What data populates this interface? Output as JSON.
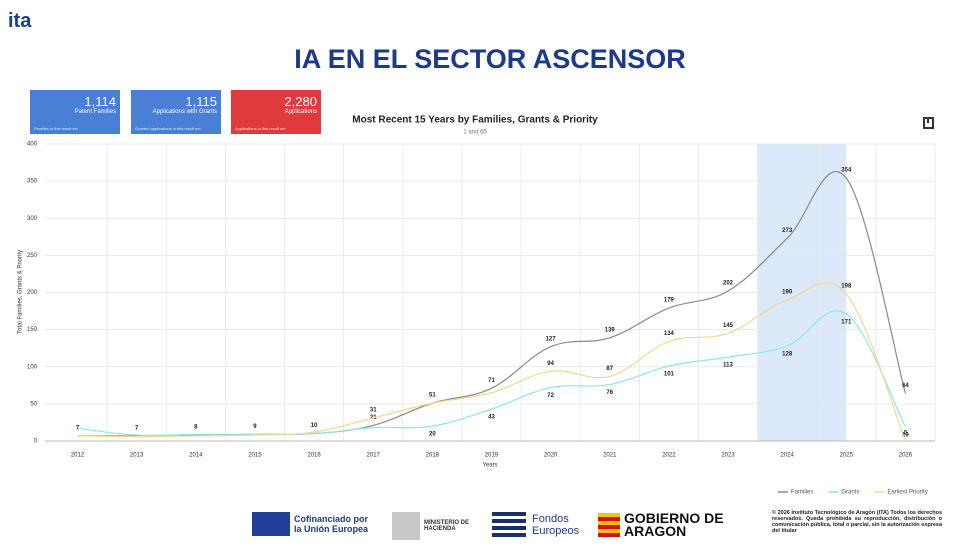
{
  "header": {
    "logo": "ita",
    "title": "IA EN EL SECTOR ASCENSOR"
  },
  "cards": [
    {
      "value": "1,114",
      "label": "Patent Families",
      "note": "Families in this result set"
    },
    {
      "value": "1,115",
      "label": "Applications with Grants",
      "note": "Granted applications in this result set"
    },
    {
      "value": "2,280",
      "label": "Applications",
      "note": "Applications in this result set"
    }
  ],
  "chart_data": {
    "type": "line",
    "title": "Most Recent 15 Years by Families, Grants & Priority",
    "subtitle": "1 and 65",
    "x_label": "Years",
    "y_label": "Total Families, Grants & Priority",
    "x": [
      2012,
      2013,
      2014,
      2015,
      2016,
      2017,
      2018,
      2019,
      2020,
      2021,
      2022,
      2023,
      2024,
      2025,
      2026
    ],
    "xlim": [
      2011.45,
      2026.5
    ],
    "xticks": [
      2012,
      2013,
      2014,
      2015,
      2016,
      2017,
      2018,
      2019,
      2020,
      2021,
      2022,
      2023,
      2024,
      2025,
      2026
    ],
    "ylim": [
      0,
      400
    ],
    "yticks": [
      0,
      50,
      100,
      150,
      200,
      250,
      300,
      350,
      400
    ],
    "grid": true,
    "highlight": [
      2023.5,
      2025
    ],
    "highlight_color": "#dce9fb",
    "legend": "bottom-right",
    "series": [
      {
        "name": "Families",
        "color": "#8a8a8a",
        "values": [
          7,
          7,
          8,
          9,
          10,
          21,
          51,
          71,
          127,
          139,
          179,
          202,
          273,
          354,
          64
        ]
      },
      {
        "name": "Grants",
        "color": "#8ee9e1",
        "values": [
          17,
          8,
          9,
          9,
          10,
          18,
          20,
          43,
          72,
          76,
          101,
          113,
          128,
          171,
          19
        ]
      },
      {
        "name": "Earliest Priority",
        "color": "#f3d98f",
        "values": [
          7,
          6,
          7,
          8,
          12,
          31,
          51,
          65,
          94,
          87,
          134,
          145,
          190,
          198,
          0
        ]
      }
    ]
  },
  "footer": {
    "eu": "Cofinanciado por la Unión Europea",
    "ministry": "MINISTERIO DE HACIENDA",
    "funds": "Fondos Europeos",
    "aragon": "GOBIERNO DE ARAGON",
    "copyright": "© 2026 Instituto Tecnológico de Aragón (ITA) Todos los derechos reservados. Queda prohibida su reproducción, distribución o comunicación pública, total o parcial, sin la autorización expresa del titular"
  }
}
